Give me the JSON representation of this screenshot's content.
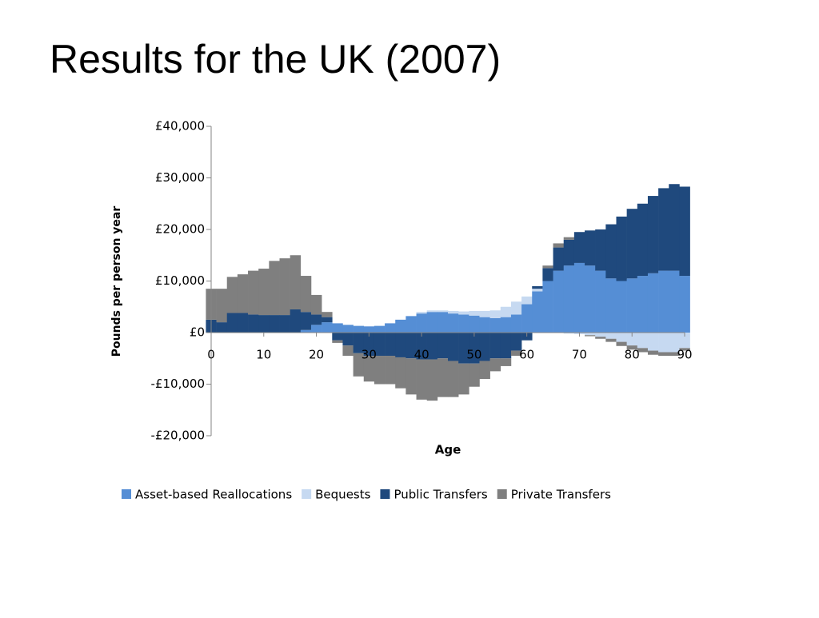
{
  "chart_data": {
    "type": "stacked-area",
    "title": "Results for the UK (2007)",
    "x_label": "Age",
    "y_label": "Pounds per person year",
    "x": [
      0,
      2,
      4,
      6,
      8,
      10,
      12,
      14,
      16,
      18,
      20,
      22,
      24,
      26,
      28,
      30,
      32,
      34,
      36,
      38,
      40,
      42,
      44,
      46,
      48,
      50,
      52,
      54,
      56,
      58,
      60,
      62,
      64,
      66,
      68,
      70,
      72,
      74,
      76,
      78,
      80,
      82,
      84,
      86,
      88,
      90
    ],
    "series": [
      {
        "name": "Asset-based Reallocations",
        "color": "#558ed5",
        "values": [
          0,
          0,
          0,
          0,
          0,
          0,
          0,
          0,
          0,
          500,
          1500,
          2000,
          1800,
          1500,
          1300,
          1200,
          1300,
          1800,
          2500,
          3200,
          3700,
          4000,
          4000,
          3700,
          3500,
          3300,
          3000,
          2800,
          3000,
          3500,
          5500,
          8000,
          10000,
          12000,
          13000,
          13500,
          13000,
          12000,
          10500,
          10000,
          10500,
          11000,
          11500,
          12000,
          12000,
          11000
        ]
      },
      {
        "name": "Bequests",
        "color": "#c6d9f1",
        "values": [
          0,
          0,
          0,
          0,
          0,
          0,
          0,
          0,
          0,
          0,
          0,
          0,
          0,
          0,
          0,
          0,
          0,
          0,
          0,
          0,
          300,
          300,
          300,
          500,
          600,
          900,
          1200,
          1500,
          2000,
          2500,
          1500,
          500,
          0,
          0,
          -200,
          -300,
          -500,
          -800,
          -1200,
          -1800,
          -2500,
          -3000,
          -3500,
          -3800,
          -3800,
          -3000
        ]
      },
      {
        "name": "Public Transfers",
        "color": "#1f497d",
        "values": [
          2500,
          2000,
          3800,
          3800,
          3500,
          3400,
          3400,
          3400,
          4500,
          3500,
          2000,
          1000,
          -1500,
          -2500,
          -4000,
          -4500,
          -4500,
          -4500,
          -4800,
          -5000,
          -5200,
          -5200,
          -5000,
          -5500,
          -6000,
          -6000,
          -5500,
          -5000,
          -5000,
          -3500,
          -1500,
          500,
          2500,
          4500,
          5000,
          6000,
          6800,
          8000,
          10500,
          12500,
          13500,
          14000,
          15000,
          16000,
          16800,
          17300
        ]
      },
      {
        "name": "Private Transfers",
        "color": "#7f7f7f",
        "values": [
          6000,
          6500,
          7000,
          7500,
          8500,
          9000,
          10500,
          11000,
          10500,
          7000,
          3800,
          1000,
          -500,
          -2000,
          -4500,
          -5000,
          -5500,
          -5500,
          -6000,
          -7000,
          -7800,
          -8000,
          -7500,
          -7000,
          -6000,
          -4500,
          -3500,
          -2500,
          -1500,
          -1000,
          0,
          0,
          500,
          800,
          500,
          0,
          -200,
          -400,
          -600,
          -800,
          -800,
          -800,
          -800,
          -700,
          -700,
          -500
        ]
      }
    ],
    "xlim": [
      0,
      90
    ],
    "xticks": [
      0,
      10,
      20,
      30,
      40,
      50,
      60,
      70,
      80,
      90
    ],
    "ylim": [
      -20000,
      40000
    ],
    "yticks": [
      {
        "value": -20000,
        "label": "-£20,000"
      },
      {
        "value": -10000,
        "label": "-£10,000"
      },
      {
        "value": 0,
        "label": "£0"
      },
      {
        "value": 10000,
        "label": "£10,000"
      },
      {
        "value": 20000,
        "label": "£20,000"
      },
      {
        "value": 30000,
        "label": "£30,000"
      },
      {
        "value": 40000,
        "label": "£40,000"
      }
    ],
    "legend": "bottom"
  }
}
